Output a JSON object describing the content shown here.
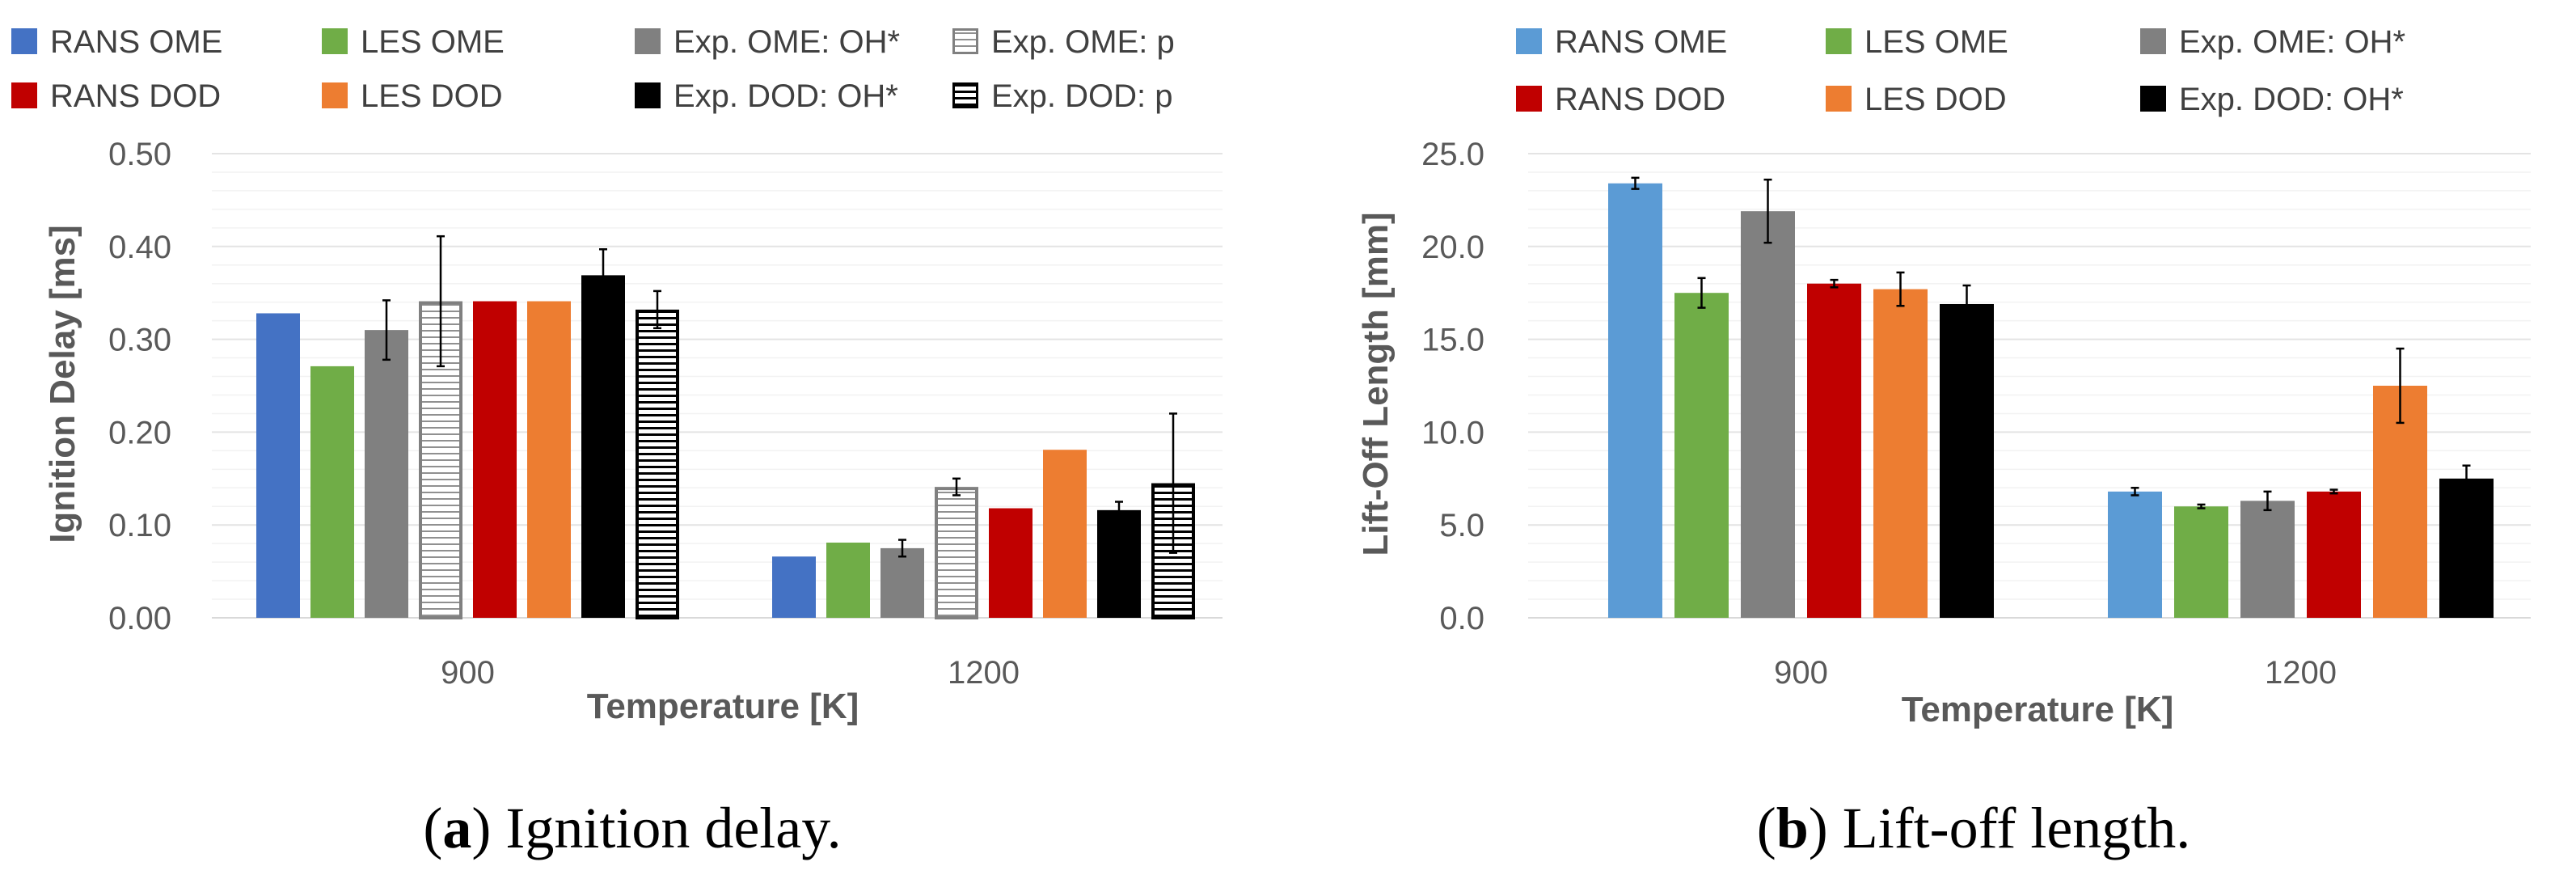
{
  "chart_data": [
    {
      "type": "bar",
      "panel": "a",
      "caption_letter": "a",
      "caption_text": "Ignition delay.",
      "xlabel": "Temperature [K]",
      "ylabel": "Ignition Delay [ms]",
      "categories": [
        "900",
        "1200"
      ],
      "ylim": [
        0,
        0.5
      ],
      "yticks": [
        "0.00",
        "0.10",
        "0.20",
        "0.30",
        "0.40",
        "0.50"
      ],
      "ytick_values": [
        0,
        0.1,
        0.2,
        0.3,
        0.4,
        0.5
      ],
      "grid": true,
      "legend_position": "top",
      "series": [
        {
          "name": "RANS OME",
          "color": "#4472c4",
          "pattern": "solid",
          "values": [
            0.328,
            0.066
          ],
          "errors": [
            null,
            null
          ]
        },
        {
          "name": "LES OME",
          "color": "#70ad47",
          "pattern": "solid",
          "values": [
            0.271,
            0.081
          ],
          "errors": [
            null,
            null
          ]
        },
        {
          "name": "Exp. OME: OH*",
          "color": "#808080",
          "pattern": "solid",
          "values": [
            0.31,
            0.075
          ],
          "errors": [
            0.032,
            0.009
          ]
        },
        {
          "name": "Exp. OME: p",
          "color": "#808080",
          "pattern": "hatch",
          "values": [
            0.341,
            0.141
          ],
          "errors": [
            0.07,
            0.009
          ]
        },
        {
          "name": "RANS DOD",
          "color": "#c00000",
          "pattern": "solid",
          "values": [
            0.341,
            0.118
          ],
          "errors": [
            null,
            null
          ]
        },
        {
          "name": "LES DOD",
          "color": "#ed7d31",
          "pattern": "solid",
          "values": [
            0.341,
            0.181
          ],
          "errors": [
            null,
            null
          ]
        },
        {
          "name": "Exp. DOD: OH*",
          "color": "#000000",
          "pattern": "solid",
          "values": [
            0.369,
            0.116
          ],
          "errors": [
            0.028,
            0.009
          ]
        },
        {
          "name": "Exp. DOD: p",
          "color": "#000000",
          "pattern": "hatch",
          "values": [
            0.332,
            0.145
          ],
          "errors": [
            0.02,
            0.075
          ]
        }
      ]
    },
    {
      "type": "bar",
      "panel": "b",
      "caption_letter": "b",
      "caption_text": "Lift-off length.",
      "xlabel": "Temperature [K]",
      "ylabel": "Lift-Off Length [mm]",
      "categories": [
        "900",
        "1200"
      ],
      "ylim": [
        0,
        25
      ],
      "yticks": [
        "0.0",
        "5.0",
        "10.0",
        "15.0",
        "20.0",
        "25.0"
      ],
      "ytick_values": [
        0,
        5,
        10,
        15,
        20,
        25
      ],
      "grid": true,
      "legend_position": "top",
      "series": [
        {
          "name": "RANS OME",
          "color": "#5b9bd5",
          "pattern": "solid",
          "values": [
            23.4,
            6.8
          ],
          "errors": [
            0.3,
            0.2
          ]
        },
        {
          "name": "LES OME",
          "color": "#70ad47",
          "pattern": "solid",
          "values": [
            17.5,
            6.0
          ],
          "errors": [
            0.8,
            0.1
          ]
        },
        {
          "name": "Exp. OME: OH*",
          "color": "#808080",
          "pattern": "solid",
          "values": [
            21.9,
            6.3
          ],
          "errors": [
            1.7,
            0.5
          ]
        },
        {
          "name": "RANS DOD",
          "color": "#c00000",
          "pattern": "solid",
          "values": [
            18.0,
            6.8
          ],
          "errors": [
            0.2,
            0.1
          ]
        },
        {
          "name": "LES DOD",
          "color": "#ed7d31",
          "pattern": "solid",
          "values": [
            17.7,
            12.5
          ],
          "errors": [
            0.9,
            2.0
          ]
        },
        {
          "name": "Exp. DOD: OH*",
          "color": "#000000",
          "pattern": "solid",
          "values": [
            16.9,
            7.5
          ],
          "errors": [
            1.0,
            0.7
          ]
        }
      ]
    }
  ]
}
